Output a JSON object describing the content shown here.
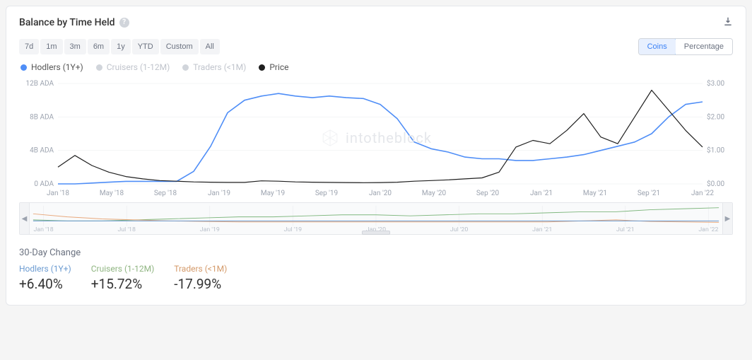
{
  "header": {
    "title": "Balance by Time Held",
    "download_icon": "download"
  },
  "ranges": [
    "7d",
    "1m",
    "3m",
    "6m",
    "1y",
    "YTD",
    "Custom",
    "All"
  ],
  "mode": {
    "options": [
      "Coins",
      "Percentage"
    ],
    "active_index": 0
  },
  "legend": [
    {
      "label": "Hodlers (1Y+)",
      "color": "#4f8ef7",
      "muted": false
    },
    {
      "label": "Cruisers (1-12M)",
      "color": "#d1d5db",
      "muted": true
    },
    {
      "label": "Traders (<1M)",
      "color": "#d1d5db",
      "muted": true
    },
    {
      "label": "Price",
      "color": "#1f1f1f",
      "muted": false
    }
  ],
  "watermark": "intotheblock",
  "chart": {
    "type": "line-dual-axis",
    "x_labels": [
      "Jan '18",
      "May '18",
      "Sep '18",
      "Jan '19",
      "May '19",
      "Sep '19",
      "Jan '20",
      "May '20",
      "Sep '20",
      "Jan '21",
      "May '21",
      "Sep '21",
      "Jan '22"
    ],
    "y_left": {
      "ticks": [
        "0 ADA",
        "4B ADA",
        "8B ADA",
        "12B ADA"
      ],
      "lim": [
        0,
        12
      ],
      "unit": "B ADA"
    },
    "y_right": {
      "ticks": [
        "$0.00",
        "$1.00",
        "$2.00",
        "$3.00"
      ],
      "lim": [
        0,
        3
      ],
      "unit": "$"
    },
    "grid_color": "#f3f4f6",
    "background_color": "#ffffff",
    "axis_text_color": "#9ca3af",
    "axis_fontsize": 10,
    "hodlers": {
      "color": "#4f8ef7",
      "width": 1.6,
      "values": [
        0,
        0,
        0.1,
        0.2,
        0.3,
        0.3,
        0.3,
        0.3,
        1.5,
        4.5,
        8.5,
        10.0,
        10.5,
        10.8,
        10.5,
        10.3,
        10.5,
        10.3,
        10.2,
        9.5,
        7.8,
        5.0,
        4.2,
        3.8,
        3.2,
        3.0,
        3.0,
        2.8,
        2.8,
        3.0,
        3.2,
        3.5,
        4.0,
        4.5,
        5.0,
        6.0,
        8.0,
        9.5,
        9.8
      ]
    },
    "price": {
      "color": "#1f1f1f",
      "width": 1.2,
      "values": [
        0.5,
        0.85,
        0.55,
        0.35,
        0.22,
        0.15,
        0.1,
        0.08,
        0.06,
        0.05,
        0.045,
        0.045,
        0.09,
        0.08,
        0.06,
        0.05,
        0.045,
        0.04,
        0.035,
        0.04,
        0.05,
        0.08,
        0.1,
        0.12,
        0.15,
        0.18,
        0.35,
        1.1,
        1.3,
        1.2,
        1.6,
        2.1,
        1.4,
        1.2,
        2.0,
        2.8,
        2.2,
        1.6,
        1.1
      ]
    },
    "navigator": {
      "x_labels": [
        "Jan '18",
        "Jul '18",
        "Jan '19",
        "Jul '19",
        "Jan '20",
        "Jul '20",
        "Jan '21",
        "Jul '21",
        "Jan '22"
      ],
      "series": [
        {
          "color": "#7fb77e",
          "values": [
            0.3,
            0.25,
            0.25,
            0.3,
            0.35,
            0.4,
            0.45,
            0.45,
            0.5,
            0.55,
            0.55,
            0.5,
            0.55,
            0.6,
            0.6,
            0.65,
            0.7,
            0.7,
            0.8,
            0.85,
            0.9
          ]
        },
        {
          "color": "#e8a87c",
          "values": [
            0.6,
            0.45,
            0.35,
            0.3,
            0.25,
            0.22,
            0.2,
            0.2,
            0.2,
            0.2,
            0.2,
            0.2,
            0.2,
            0.2,
            0.2,
            0.2,
            0.25,
            0.3,
            0.22,
            0.2,
            0.18
          ]
        },
        {
          "color": "#6b9bd1",
          "values": [
            0.25,
            0.25,
            0.25,
            0.25,
            0.25,
            0.25,
            0.25,
            0.25,
            0.25,
            0.25,
            0.25,
            0.25,
            0.25,
            0.25,
            0.25,
            0.25,
            0.25,
            0.25,
            0.25,
            0.25,
            0.25
          ]
        }
      ]
    }
  },
  "change": {
    "title": "30-Day Change",
    "items": [
      {
        "label": "Hodlers (1Y+)",
        "value": "+6.40%",
        "label_color": "#6b9bd1"
      },
      {
        "label": "Cruisers (1-12M)",
        "value": "+15.72%",
        "label_color": "#8fb581"
      },
      {
        "label": "Traders (<1M)",
        "value": "-17.99%",
        "label_color": "#d49a6a"
      }
    ]
  }
}
